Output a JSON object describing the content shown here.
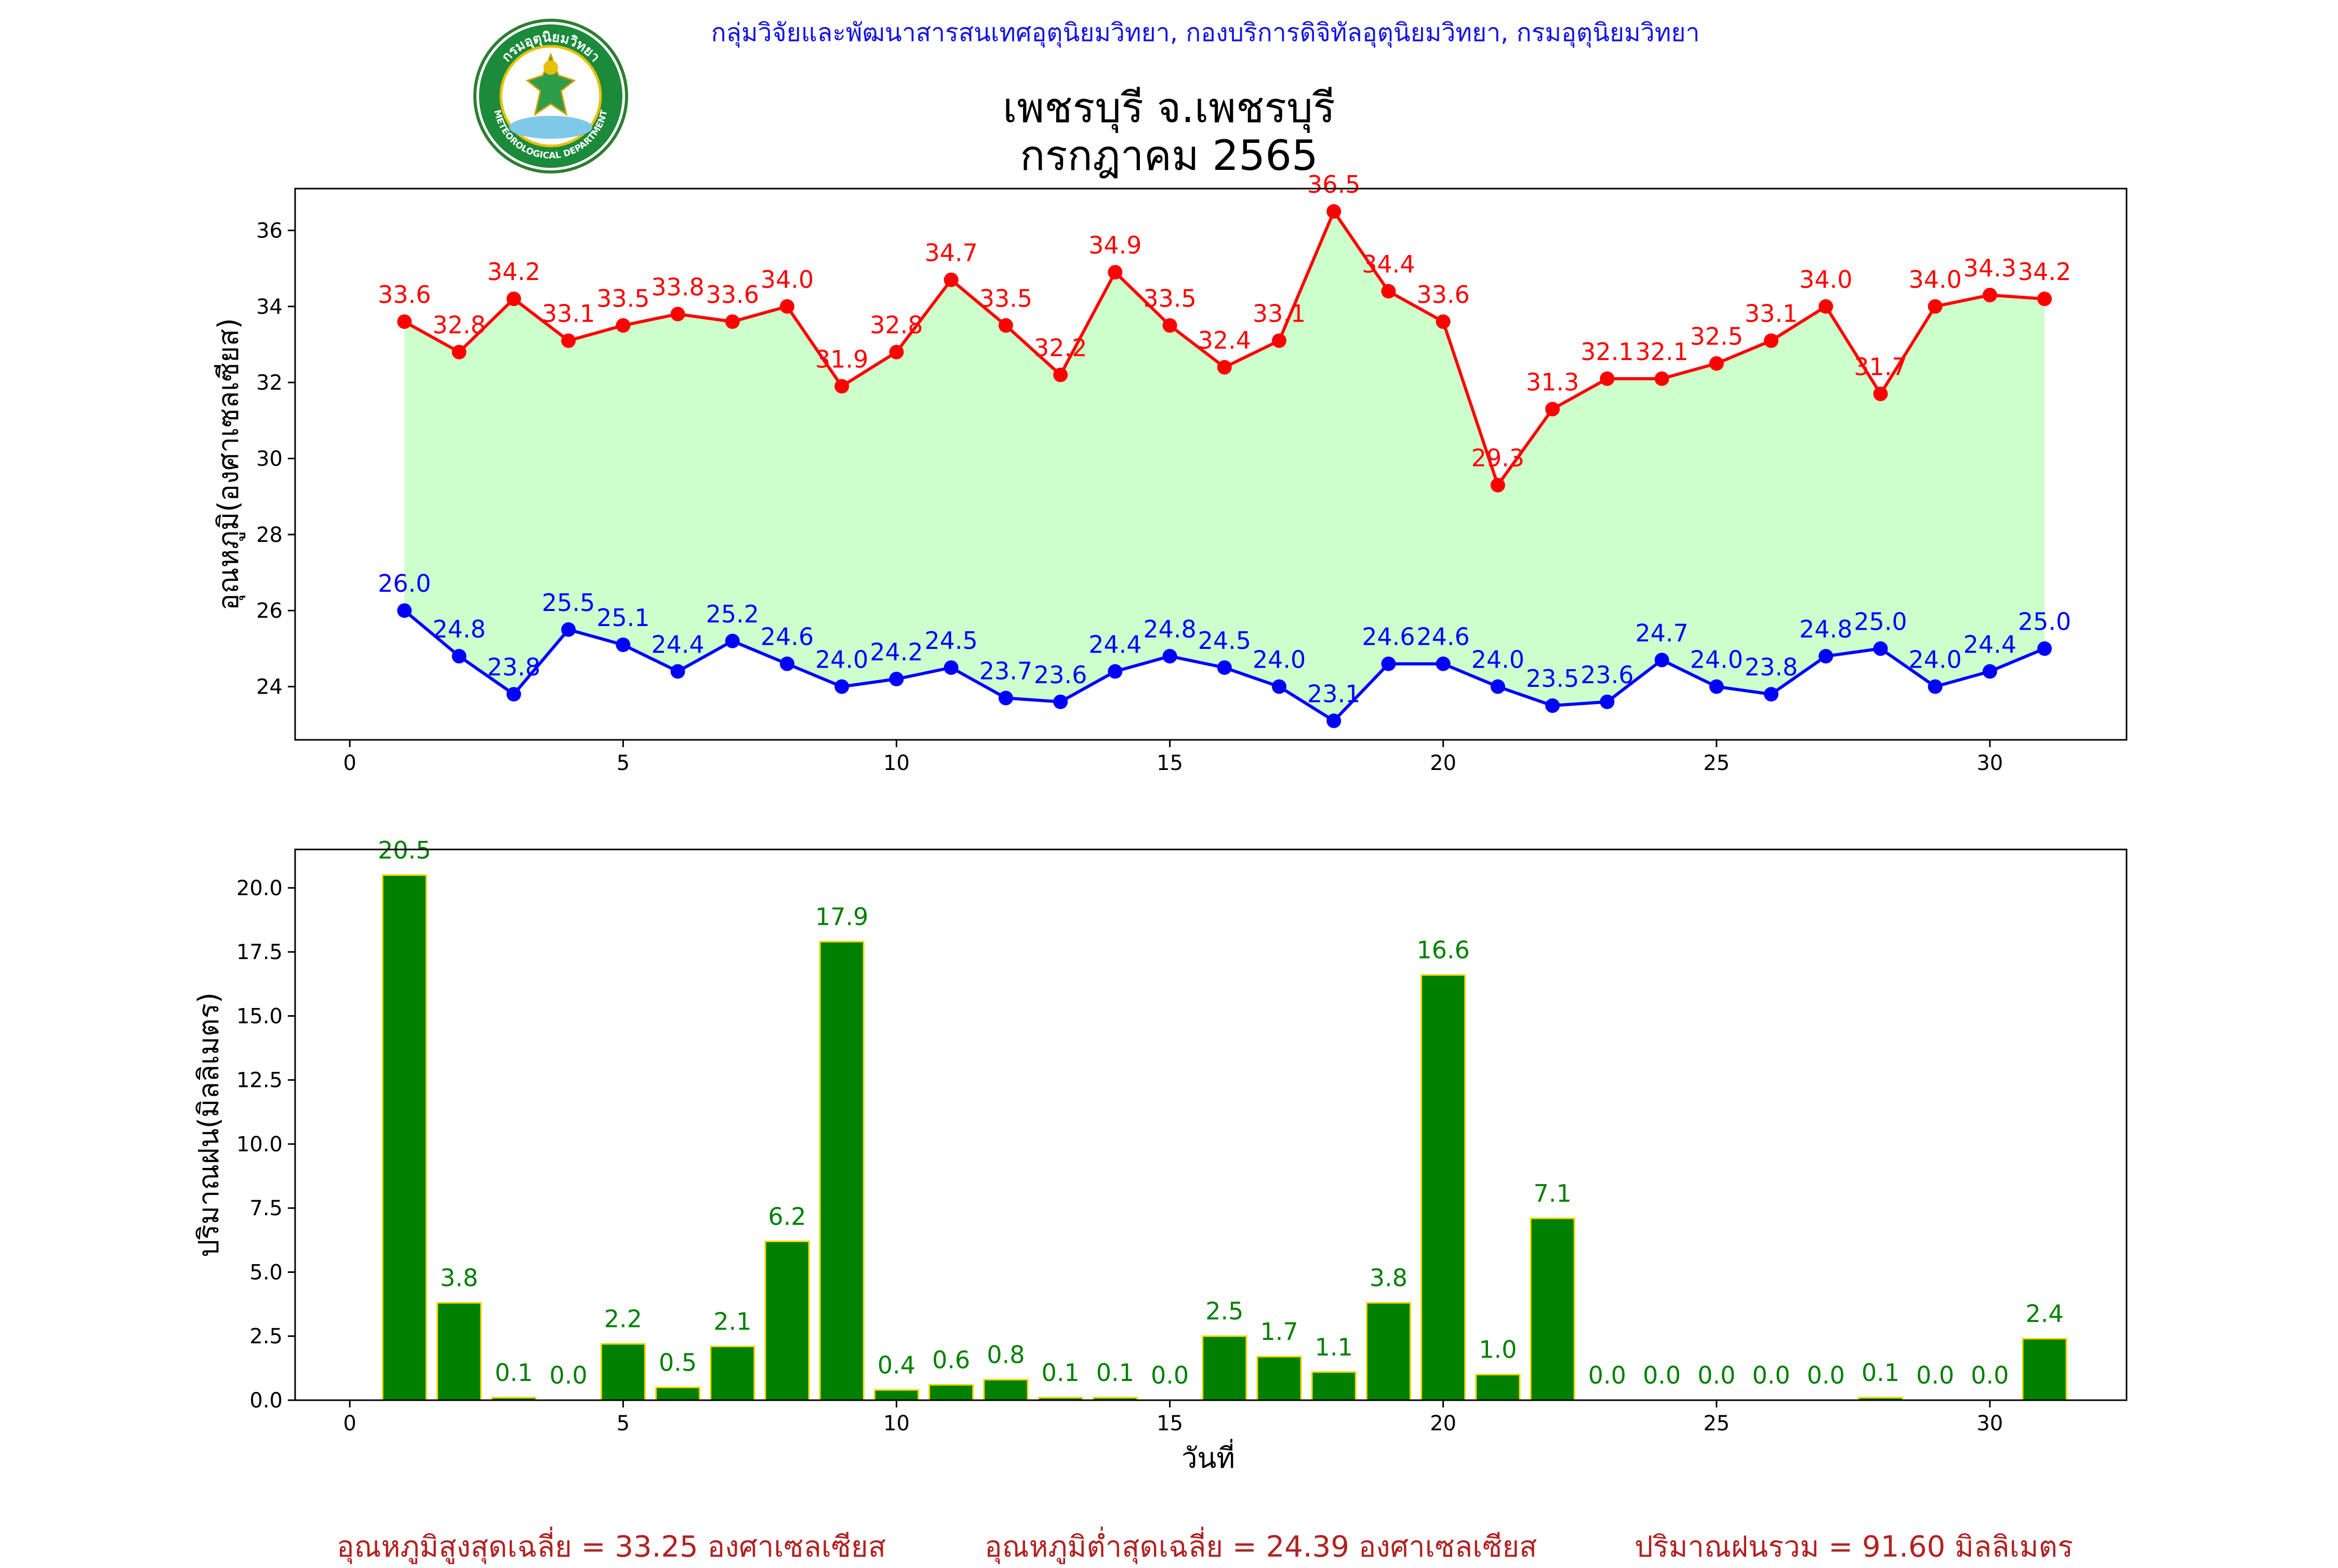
{
  "header": {
    "organization": "กลุ่มวิจัยและพัฒนาสารสนเทศอุตุนิยมวิทยา, กองบริการดิจิทัลอุตุนิยมวิทยา, กรมอุตุนิยมวิทยา",
    "title_line1": "เพชรบุรี จ.เพชรบุรี",
    "title_line2": "กรกฎาคม 2565",
    "logo_top_text": "กรมอุตุนิยมวิทยา",
    "logo_bottom_text": "METEOROLOGICAL DEPARTMENT"
  },
  "footer": {
    "avg_max": "อุณหภูมิสูงสุดเฉลี่ย = 33.25 องศาเซลเซียส",
    "avg_min": "อุณหภูมิต่ำสุดเฉลี่ย = 24.39 องศาเซลเซียส",
    "rain_total": "ปริมาณฝนรวม = 91.60 มิลลิเมตร"
  },
  "colors": {
    "max_series": "#ff0000",
    "min_series": "#0000ff",
    "fill": "#ccffcc",
    "bar_fill": "#008000",
    "bar_edge": "#ffd700",
    "bar_label": "#008000",
    "org_text": "#1414e6",
    "footer_text": "#b22222"
  },
  "chart_data": [
    {
      "type": "line",
      "ylabel": "อุณหภูมิ(องศาเซลเซียส)",
      "xlim": [
        -1,
        32.5
      ],
      "ylim": [
        22.6,
        37.1
      ],
      "xticks": [
        0,
        5,
        10,
        15,
        20,
        25,
        30
      ],
      "yticks": [
        24,
        26,
        28,
        30,
        32,
        34,
        36
      ],
      "x": [
        1,
        2,
        3,
        4,
        5,
        6,
        7,
        8,
        9,
        10,
        11,
        12,
        13,
        14,
        15,
        16,
        17,
        18,
        19,
        20,
        21,
        22,
        23,
        24,
        25,
        26,
        27,
        28,
        29,
        30,
        31
      ],
      "series": [
        {
          "key": "max",
          "values": [
            33.6,
            32.8,
            34.2,
            33.1,
            33.5,
            33.8,
            33.6,
            34.0,
            31.9,
            32.8,
            34.7,
            33.5,
            32.2,
            34.9,
            33.5,
            32.4,
            33.1,
            36.5,
            34.4,
            33.6,
            29.3,
            31.3,
            32.1,
            32.1,
            32.5,
            33.1,
            34.0,
            31.7,
            34.0,
            34.3,
            34.2
          ]
        },
        {
          "key": "min",
          "values": [
            26.0,
            24.8,
            23.8,
            25.5,
            25.1,
            24.4,
            25.2,
            24.6,
            24.0,
            24.2,
            24.5,
            23.7,
            23.6,
            24.4,
            24.8,
            24.5,
            24.0,
            23.1,
            24.6,
            24.6,
            24.0,
            23.5,
            23.6,
            24.7,
            24.0,
            23.8,
            24.8,
            25.0,
            24.0,
            24.4,
            25.0
          ]
        }
      ],
      "fill_between": true,
      "grid": false
    },
    {
      "type": "bar",
      "xlabel": "วันที่",
      "ylabel": "ปริมาณฝน(มิลลิเมตร)",
      "xlim": [
        -1,
        32.5
      ],
      "ylim": [
        0,
        21.5
      ],
      "xticks": [
        0,
        5,
        10,
        15,
        20,
        25,
        30
      ],
      "yticks": [
        "0.0",
        "2.5",
        "5.0",
        "7.5",
        "10.0",
        "12.5",
        "15.0",
        "17.5",
        "20.0"
      ],
      "x": [
        1,
        2,
        3,
        4,
        5,
        6,
        7,
        8,
        9,
        10,
        11,
        12,
        13,
        14,
        15,
        16,
        17,
        18,
        19,
        20,
        21,
        22,
        23,
        24,
        25,
        26,
        27,
        28,
        29,
        30,
        31
      ],
      "values": [
        20.5,
        3.8,
        0.1,
        0.0,
        2.2,
        0.5,
        2.1,
        6.2,
        17.9,
        0.4,
        0.6,
        0.8,
        0.1,
        0.1,
        0.0,
        2.5,
        1.7,
        1.1,
        3.8,
        16.6,
        1.0,
        7.1,
        0.0,
        0.0,
        0.0,
        0.0,
        0.0,
        0.1,
        0.0,
        0.0,
        2.4
      ],
      "grid": false
    }
  ]
}
